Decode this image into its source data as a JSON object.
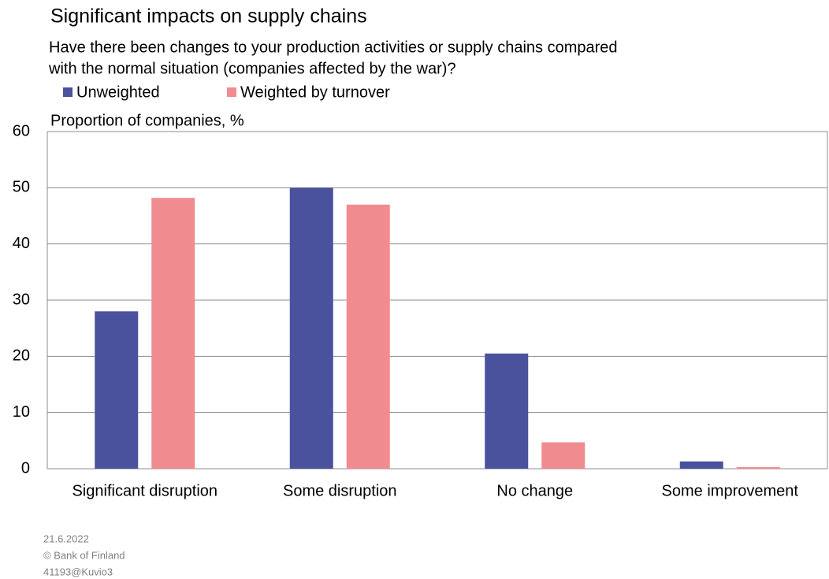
{
  "chart_data": {
    "type": "bar",
    "title": "Significant impacts on supply chains",
    "subtitle": [
      "Have there been changes to your production activities or supply chains compared",
      "with the normal situation (companies affected by the war)?"
    ],
    "y_label": "Proportion of companies, %",
    "categories": [
      "Significant disruption",
      "Some disruption",
      "No change",
      "Some improvement"
    ],
    "series": [
      {
        "name": "Unweighted",
        "color": "#4a529e",
        "values": [
          28,
          50,
          20.5,
          1.3
        ]
      },
      {
        "name": "Weighted by turnover",
        "color": "#f08c8f",
        "values": [
          48.2,
          47,
          4.7,
          0.3
        ]
      }
    ],
    "ylim": [
      0,
      60
    ],
    "yticks": [
      0,
      10,
      20,
      30,
      40,
      50,
      60
    ],
    "grid": true,
    "legend": "top",
    "notes": [
      "21.6.2022",
      "© Bank of Finland",
      "41193@Kuvio3"
    ]
  }
}
